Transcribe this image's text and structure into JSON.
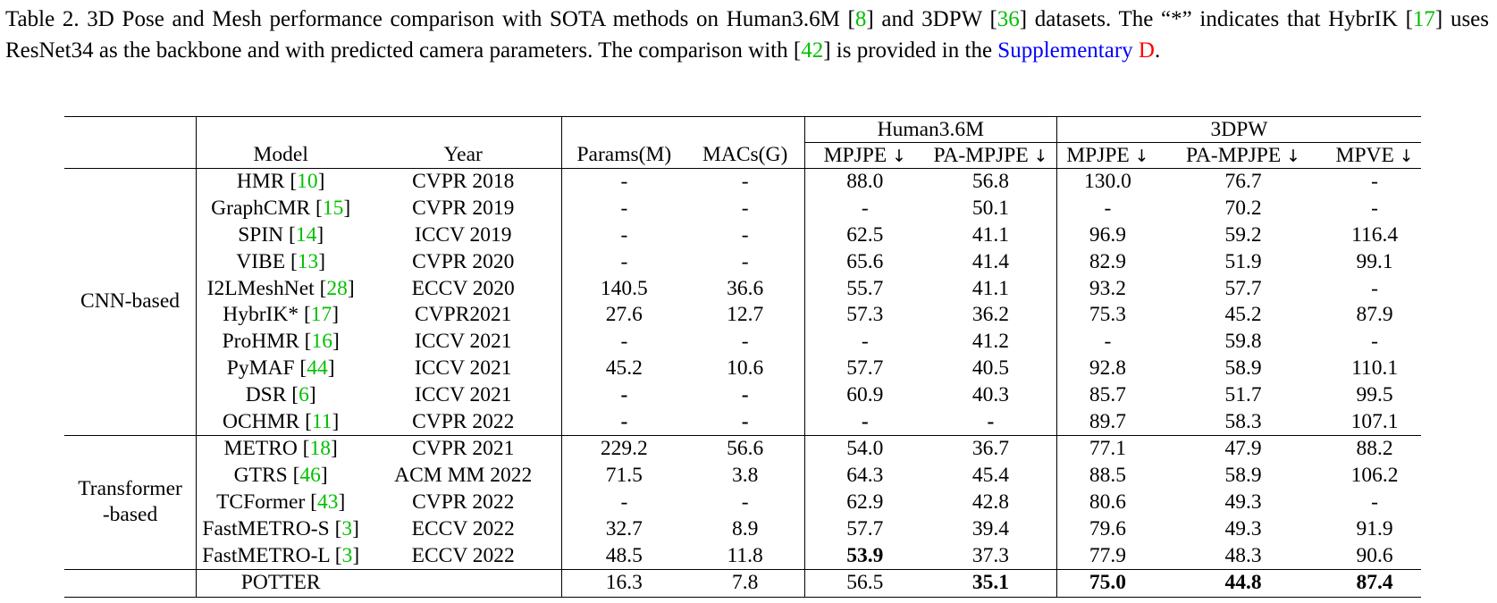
{
  "caption": {
    "p1": "Table 2. 3D Pose and Mesh performance comparison with SOTA methods on Human3.6M [",
    "c1": "8",
    "p2": "] and 3DPW [",
    "c2": "36",
    "p3": "] datasets. The “*” indicates that HybrIK [",
    "c3": "17",
    "p4": "] uses ResNet34 as the backbone and with predicted camera parameters.  The comparison with [",
    "c4": "42",
    "p5": "] is provided in the ",
    "supp": "Supplementary",
    "supp_d": "D",
    "end": "."
  },
  "groups": {
    "h36m": "Human3.6M",
    "pw3d": "3DPW"
  },
  "headers": {
    "model": "Model",
    "year": "Year",
    "params": "Params(M)",
    "macs": "MACs(G)",
    "h_mpjpe": "MPJPE",
    "h_pampjpe": "PA-MPJPE",
    "p_mpjpe": "MPJPE",
    "p_pampjpe": "PA-MPJPE",
    "p_mpve": "MPVE",
    "arrow": "↓"
  },
  "categories": {
    "cnn": "CNN-based",
    "trans1": "Transformer",
    "trans2": "-based"
  },
  "rows": [
    {
      "m": "HMR ",
      "c": "10",
      "y": "CVPR 2018",
      "pa": "-",
      "ma": "-",
      "h1": "88.0",
      "h2": "56.8",
      "p1": "130.0",
      "p2": "76.7",
      "p3": "-"
    },
    {
      "m": "GraphCMR ",
      "c": "15",
      "y": "CVPR 2019",
      "pa": "-",
      "ma": "-",
      "h1": "-",
      "h2": "50.1",
      "p1": "-",
      "p2": "70.2",
      "p3": "-"
    },
    {
      "m": "SPIN ",
      "c": "14",
      "y": "ICCV 2019",
      "pa": "-",
      "ma": "-",
      "h1": "62.5",
      "h2": "41.1",
      "p1": "96.9",
      "p2": "59.2",
      "p3": "116.4"
    },
    {
      "m": "VIBE ",
      "c": "13",
      "y": "CVPR 2020",
      "pa": "-",
      "ma": "-",
      "h1": "65.6",
      "h2": "41.4",
      "p1": "82.9",
      "p2": "51.9",
      "p3": "99.1"
    },
    {
      "m": "I2LMeshNet ",
      "c": "28",
      "y": "ECCV 2020",
      "pa": "140.5",
      "ma": "36.6",
      "h1": "55.7",
      "h2": "41.1",
      "p1": "93.2",
      "p2": "57.7",
      "p3": "-"
    },
    {
      "m": "HybrIK* ",
      "c": "17",
      "y": "CVPR2021",
      "pa": "27.6",
      "ma": "12.7",
      "h1": "57.3",
      "h2": "36.2",
      "p1": "75.3",
      "p2": "45.2",
      "p3": "87.9"
    },
    {
      "m": "ProHMR ",
      "c": "16",
      "y": "ICCV 2021",
      "pa": "-",
      "ma": "-",
      "h1": "-",
      "h2": "41.2",
      "p1": "-",
      "p2": "59.8",
      "p3": "-"
    },
    {
      "m": "PyMAF ",
      "c": "44",
      "y": "ICCV 2021",
      "pa": "45.2",
      "ma": "10.6",
      "h1": "57.7",
      "h2": "40.5",
      "p1": "92.8",
      "p2": "58.9",
      "p3": "110.1"
    },
    {
      "m": "DSR ",
      "c": "6",
      "y": "ICCV 2021",
      "pa": "-",
      "ma": "-",
      "h1": "60.9",
      "h2": "40.3",
      "p1": "85.7",
      "p2": "51.7",
      "p3": "99.5"
    },
    {
      "m": "OCHMR ",
      "c": "11",
      "y": "CVPR 2022",
      "pa": "-",
      "ma": "-",
      "h1": "-",
      "h2": "-",
      "p1": "89.7",
      "p2": "58.3",
      "p3": "107.1"
    },
    {
      "m": "METRO ",
      "c": "18",
      "y": "CVPR 2021",
      "pa": "229.2",
      "ma": "56.6",
      "h1": "54.0",
      "h2": "36.7",
      "p1": "77.1",
      "p2": "47.9",
      "p3": "88.2"
    },
    {
      "m": "GTRS ",
      "c": "46",
      "y": "ACM MM 2022",
      "pa": "71.5",
      "ma": "3.8",
      "h1": "64.3",
      "h2": "45.4",
      "p1": "88.5",
      "p2": "58.9",
      "p3": "106.2"
    },
    {
      "m": "TCFormer ",
      "c": "43",
      "y": "CVPR 2022",
      "pa": "-",
      "ma": "-",
      "h1": "62.9",
      "h2": "42.8",
      "p1": "80.6",
      "p2": "49.3",
      "p3": "-"
    },
    {
      "m": "FastMETRO-S ",
      "c": "3",
      "y": "ECCV 2022",
      "pa": "32.7",
      "ma": "8.9",
      "h1": "57.7",
      "h2": "39.4",
      "p1": "79.6",
      "p2": "49.3",
      "p3": "91.9"
    },
    {
      "m": "FastMETRO-L ",
      "c": "3",
      "y": "ECCV 2022",
      "pa": "48.5",
      "ma": "11.8",
      "h1": "53.9",
      "h2": "37.3",
      "p1": "77.9",
      "p2": "48.3",
      "p3": "90.6"
    }
  ],
  "potter": {
    "m": "POTTER",
    "pa": "16.3",
    "ma": "7.8",
    "h1": "56.5",
    "h2": "35.1",
    "p1": "75.0",
    "p2": "44.8",
    "p3": "87.4"
  }
}
